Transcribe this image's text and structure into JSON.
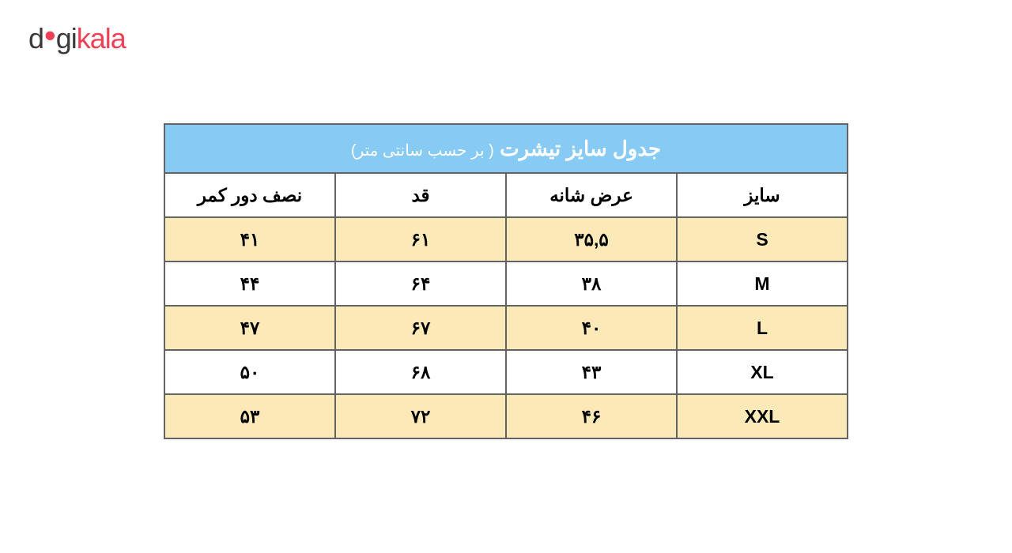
{
  "logo": {
    "part1": "d",
    "dot": "•",
    "part2": "gi",
    "part3": "kala",
    "color_dark": "#3a3a3a",
    "color_red": "#ef4056"
  },
  "table": {
    "title_main": "جدول سایز تیشرت",
    "title_sub": "( بر حسب سانتی متر)",
    "title_bg": "#87caf3",
    "title_fg": "#ffffff",
    "title_sub_fg": "#ffffff",
    "border_color": "#646262",
    "header_bg": "#ffffff",
    "row_alt_bg": "#fce9b8",
    "row_bg": "#ffffff",
    "text_color": "#000000",
    "columns": [
      "نصف دور کمر",
      "قد",
      "عرض شانه",
      "سایز"
    ],
    "rows": [
      [
        "۴۱",
        "۶۱",
        "۳۵,۵",
        "S"
      ],
      [
        "۴۴",
        "۶۴",
        "۳۸",
        "M"
      ],
      [
        "۴۷",
        "۶۷",
        "۴۰",
        "L"
      ],
      [
        "۵۰",
        "۶۸",
        "۴۳",
        "XL"
      ],
      [
        "۵۳",
        "۷۲",
        "۴۶",
        "XXL"
      ]
    ]
  }
}
